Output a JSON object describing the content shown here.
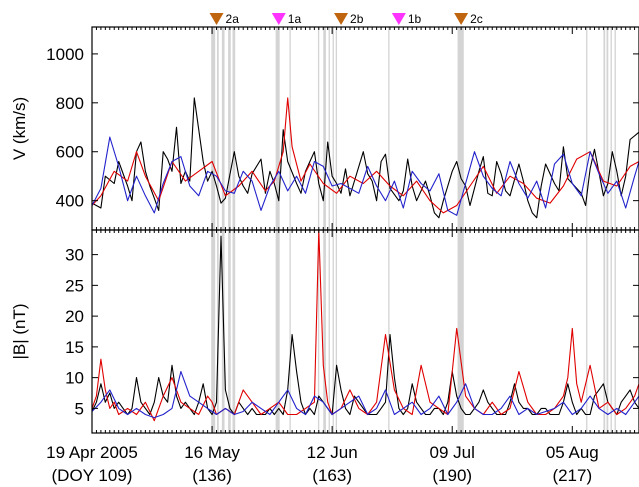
{
  "chart_data": [
    {
      "type": "line",
      "ylabel": "V (km/s)",
      "ylim": [
        280,
        1110
      ],
      "yticks": [
        400,
        600,
        800,
        1000
      ],
      "xlim": [
        109,
        232
      ],
      "grid": false,
      "series": [
        {
          "color": "#000000",
          "x": [
            109,
            111,
            112,
            114,
            115,
            117,
            118,
            119,
            120,
            121,
            122,
            123,
            124,
            125,
            126,
            127,
            128,
            129,
            130,
            131,
            132,
            134,
            135,
            136,
            137,
            138,
            139,
            141,
            142,
            143,
            144,
            145,
            147,
            148,
            149,
            150,
            151,
            152,
            153,
            155,
            156,
            157,
            158,
            159,
            160,
            161,
            162,
            163,
            164,
            165,
            166,
            167,
            168,
            170,
            171,
            172,
            173,
            174,
            175,
            176,
            178,
            179,
            180,
            181,
            182,
            184,
            185,
            186,
            187,
            188,
            189,
            190,
            191,
            192,
            193,
            194,
            196,
            197,
            198,
            199,
            200,
            201,
            202,
            203,
            205,
            206,
            207,
            208,
            209,
            210,
            211,
            213,
            214,
            215,
            216,
            218,
            219,
            220,
            221,
            222,
            224,
            225,
            226,
            227,
            228,
            229,
            230,
            232
          ],
          "y": [
            390,
            370,
            500,
            470,
            560,
            460,
            400,
            600,
            640,
            520,
            460,
            410,
            360,
            600,
            570,
            520,
            700,
            470,
            520,
            480,
            820,
            560,
            480,
            520,
            460,
            390,
            410,
            600,
            500,
            460,
            430,
            510,
            570,
            430,
            520,
            470,
            400,
            690,
            560,
            470,
            430,
            520,
            560,
            600,
            470,
            400,
            640,
            500,
            470,
            430,
            530,
            420,
            480,
            600,
            510,
            480,
            400,
            560,
            590,
            450,
            400,
            440,
            570,
            460,
            400,
            480,
            420,
            350,
            330,
            400,
            460,
            520,
            560,
            490,
            460,
            380,
            520,
            580,
            430,
            420,
            560,
            510,
            440,
            420,
            550,
            480,
            400,
            350,
            330,
            460,
            550,
            470,
            440,
            620,
            490,
            450,
            430,
            380,
            530,
            610,
            420,
            470,
            600,
            520,
            420,
            500,
            650,
            680
          ]
        },
        {
          "color": "#e00000",
          "x": [
            109,
            111,
            114,
            117,
            119,
            121,
            124,
            127,
            130,
            133,
            136,
            139,
            142,
            145,
            148,
            150,
            152,
            153,
            154,
            156,
            158,
            161,
            164,
            167,
            170,
            173,
            176,
            179,
            182,
            185,
            188,
            191,
            194,
            197,
            200,
            203,
            206,
            209,
            212,
            215,
            218,
            221,
            224,
            227,
            230,
            232
          ],
          "y": [
            380,
            420,
            520,
            480,
            600,
            500,
            400,
            560,
            480,
            520,
            560,
            420,
            460,
            520,
            440,
            480,
            600,
            820,
            620,
            480,
            550,
            470,
            430,
            500,
            470,
            520,
            460,
            420,
            480,
            400,
            350,
            380,
            460,
            540,
            430,
            500,
            470,
            410,
            390,
            460,
            570,
            600,
            480,
            460,
            540,
            560
          ]
        },
        {
          "color": "#2222cc",
          "x": [
            109,
            111,
            113,
            115,
            117,
            119,
            121,
            123,
            125,
            127,
            129,
            131,
            133,
            135,
            137,
            139,
            141,
            143,
            145,
            147,
            149,
            151,
            153,
            155,
            157,
            159,
            161,
            163,
            165,
            167,
            169,
            171,
            173,
            175,
            177,
            179,
            181,
            183,
            185,
            187,
            189,
            191,
            193,
            195,
            197,
            199,
            201,
            203,
            205,
            207,
            209,
            211,
            213,
            215,
            217,
            219,
            221,
            223,
            225,
            227,
            229,
            231,
            232
          ],
          "y": [
            380,
            450,
            660,
            540,
            400,
            500,
            420,
            350,
            470,
            560,
            580,
            460,
            420,
            520,
            500,
            440,
            430,
            520,
            480,
            360,
            460,
            520,
            440,
            500,
            430,
            560,
            540,
            460,
            470,
            450,
            430,
            540,
            460,
            400,
            480,
            370,
            520,
            470,
            440,
            510,
            360,
            340,
            470,
            600,
            500,
            450,
            420,
            560,
            470,
            410,
            480,
            370,
            550,
            590,
            470,
            420,
            600,
            510,
            430,
            480,
            370,
            500,
            560
          ]
        }
      ]
    },
    {
      "type": "line",
      "ylabel": "|B| (nT)",
      "ylim": [
        1,
        34
      ],
      "yticks": [
        5,
        10,
        15,
        20,
        25,
        30
      ],
      "xlim": [
        109,
        232
      ],
      "grid": false,
      "series": [
        {
          "color": "#000000",
          "x": [
            109,
            110,
            111,
            112,
            113,
            114,
            115,
            116,
            117,
            118,
            119,
            120,
            121,
            122,
            123,
            124,
            125,
            126,
            127,
            128,
            129,
            130,
            131,
            132,
            133,
            134,
            135,
            136,
            137,
            138,
            139,
            140,
            141,
            142,
            143,
            144,
            145,
            146,
            147,
            148,
            149,
            150,
            151,
            152,
            153,
            154,
            155,
            156,
            157,
            158,
            159,
            160,
            161,
            162,
            163,
            164,
            165,
            166,
            167,
            168,
            169,
            170,
            171,
            172,
            173,
            174,
            175,
            176,
            177,
            178,
            179,
            180,
            181,
            182,
            183,
            184,
            185,
            186,
            187,
            188,
            189,
            190,
            191,
            192,
            193,
            194,
            195,
            196,
            197,
            198,
            199,
            200,
            201,
            202,
            203,
            204,
            205,
            206,
            207,
            208,
            209,
            210,
            211,
            212,
            213,
            214,
            215,
            216,
            217,
            218,
            219,
            220,
            221,
            222,
            223,
            224,
            225,
            226,
            227,
            228,
            229,
            230,
            231,
            232
          ],
          "y": [
            4.5,
            6,
            9,
            6,
            7.5,
            5,
            6,
            5,
            4,
            5,
            10,
            6,
            5,
            4,
            6,
            10,
            7,
            6,
            12,
            7,
            5,
            6,
            5,
            4,
            6,
            9,
            5,
            4,
            6,
            33,
            8,
            5,
            4,
            6,
            5,
            4,
            5,
            4,
            4,
            4,
            5,
            4,
            5,
            4,
            8,
            17,
            11,
            6,
            4,
            5,
            4,
            7,
            6,
            5,
            4,
            12,
            8,
            5,
            4,
            7,
            6,
            5,
            4,
            4,
            4,
            5,
            6,
            17,
            10,
            5,
            4,
            5,
            9,
            6,
            5,
            4,
            4,
            5,
            5,
            4,
            6,
            11,
            7,
            5,
            4,
            4,
            5,
            6,
            8,
            6,
            5,
            4,
            4,
            4,
            6,
            9,
            6,
            5,
            5,
            4,
            4,
            5,
            5,
            4,
            4,
            4,
            6,
            9,
            6,
            4,
            5,
            4,
            4,
            7,
            8,
            9,
            6,
            5,
            4,
            6,
            7,
            8,
            6,
            5
          ]
        },
        {
          "color": "#e00000",
          "x": [
            109,
            110,
            111,
            112,
            113,
            114,
            115,
            117,
            119,
            121,
            123,
            125,
            127,
            129,
            131,
            133,
            135,
            136,
            137,
            139,
            141,
            143,
            145,
            147,
            149,
            151,
            153,
            155,
            157,
            159,
            160,
            161,
            162,
            163,
            165,
            167,
            169,
            171,
            173,
            175,
            177,
            179,
            181,
            183,
            185,
            187,
            189,
            191,
            193,
            195,
            197,
            199,
            201,
            203,
            205,
            207,
            209,
            211,
            213,
            215,
            216,
            217,
            218,
            219,
            221,
            223,
            225,
            227,
            229,
            231,
            232
          ],
          "y": [
            5,
            7,
            13,
            8,
            5,
            6,
            4,
            5,
            4,
            6,
            3,
            7,
            10,
            6,
            5,
            4,
            7,
            6,
            4,
            5,
            4,
            8,
            6,
            4,
            5,
            6,
            4,
            4,
            5,
            6,
            34,
            12,
            6,
            4,
            5,
            8,
            5,
            4,
            6,
            17,
            8,
            5,
            4,
            12,
            6,
            5,
            4,
            18,
            7,
            5,
            4,
            6,
            4,
            5,
            11,
            6,
            4,
            4,
            5,
            7,
            10,
            18,
            9,
            6,
            12,
            5,
            6,
            4,
            5,
            7,
            9
          ]
        },
        {
          "color": "#2222cc",
          "x": [
            109,
            111,
            113,
            115,
            117,
            119,
            121,
            123,
            125,
            127,
            129,
            131,
            133,
            135,
            137,
            139,
            141,
            143,
            145,
            147,
            149,
            151,
            153,
            155,
            157,
            159,
            161,
            163,
            165,
            167,
            169,
            171,
            173,
            175,
            177,
            179,
            181,
            183,
            185,
            187,
            189,
            191,
            193,
            195,
            197,
            199,
            201,
            203,
            205,
            207,
            209,
            211,
            213,
            215,
            217,
            219,
            221,
            223,
            225,
            227,
            229,
            231,
            232
          ],
          "y": [
            4.5,
            6,
            8,
            5,
            4,
            5,
            4,
            3.5,
            4,
            5,
            11,
            7,
            6,
            5,
            4,
            5,
            4,
            4.5,
            6,
            5,
            4,
            6,
            8,
            5,
            4,
            7,
            6,
            4,
            5,
            6,
            7,
            4,
            5,
            8,
            4,
            5,
            6,
            4,
            5,
            7,
            4,
            6,
            9,
            5,
            4,
            4,
            5,
            7,
            4,
            5,
            4,
            4.5,
            5,
            6,
            4,
            5,
            7,
            5,
            4,
            5,
            4,
            6,
            7
          ]
        }
      ]
    }
  ],
  "x_axis": {
    "ticks": [
      {
        "doy": 109,
        "line1": "19 Apr 2005",
        "line2": "(DOY 109)"
      },
      {
        "doy": 136,
        "line1": "16 May",
        "line2": "(136)"
      },
      {
        "doy": 163,
        "line1": "12 Jun",
        "line2": "(163)"
      },
      {
        "doy": 190,
        "line1": "09 Jul",
        "line2": "(190)"
      },
      {
        "doy": 217,
        "line1": "05 Aug",
        "line2": "(217)"
      }
    ]
  },
  "events": [
    {
      "doy": 137,
      "label": "2a",
      "color": "#c0650f"
    },
    {
      "doy": 151,
      "label": "1a",
      "color": "#ff33ff"
    },
    {
      "doy": 165,
      "label": "2b",
      "color": "#c0650f"
    },
    {
      "doy": 178,
      "label": "1b",
      "color": "#ff33ff"
    },
    {
      "doy": 192,
      "label": "2c",
      "color": "#c0650f"
    }
  ],
  "shading": {
    "color": "#d4d4d4",
    "intervals": [
      [
        135.8,
        136.7
      ],
      [
        137.1,
        137.5
      ],
      [
        138.2,
        138.8
      ],
      [
        139.6,
        140.2
      ],
      [
        140.6,
        141.2
      ],
      [
        150.3,
        151.2
      ],
      [
        153.4,
        153.7
      ],
      [
        159.8,
        160.1
      ],
      [
        161.0,
        161.6
      ],
      [
        162.2,
        162.5
      ],
      [
        163.1,
        163.4
      ],
      [
        163.8,
        164.1
      ],
      [
        175.6,
        175.9
      ],
      [
        191.2,
        192.6
      ],
      [
        220.1,
        220.4
      ],
      [
        224.0,
        224.4
      ],
      [
        224.7,
        225.1
      ],
      [
        225.6,
        225.9
      ],
      [
        226.5,
        226.8
      ]
    ]
  }
}
